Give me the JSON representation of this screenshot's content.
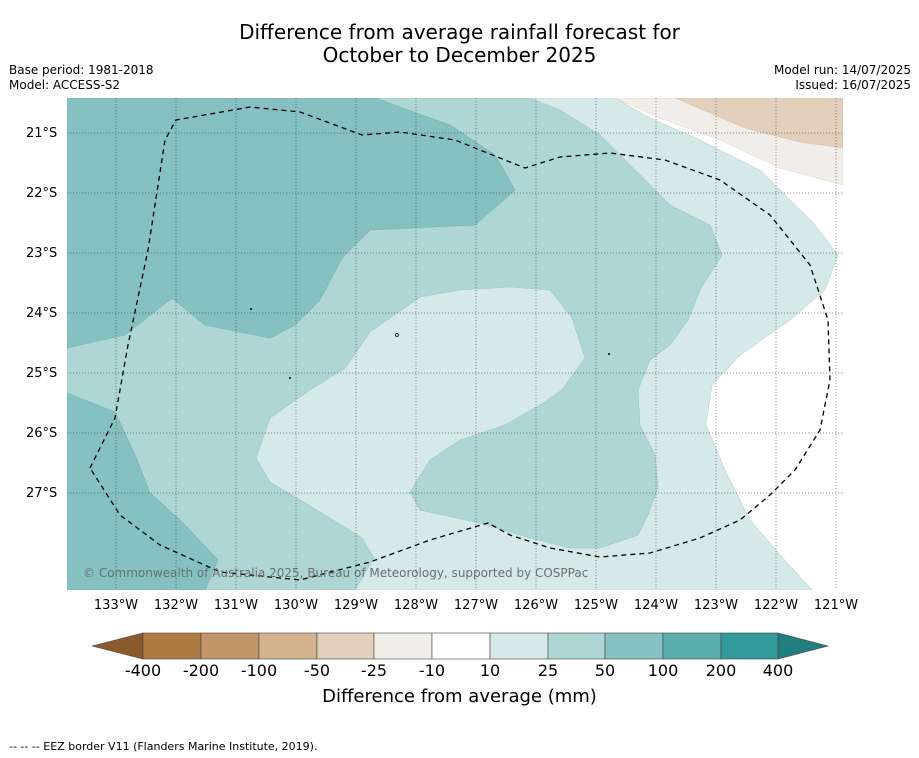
{
  "header": {
    "title_line1": "Difference from average rainfall forecast for",
    "title_line2": "October to December 2025"
  },
  "meta": {
    "base_period": "Base period: 1981-2018",
    "model": "Model: ACCESS-S2",
    "model_run": "Model run: 14/07/2025",
    "issued": "Issued: 16/07/2025"
  },
  "map": {
    "lat_labels": [
      "21°S",
      "22°S",
      "23°S",
      "24°S",
      "25°S",
      "26°S",
      "27°S"
    ],
    "lon_labels": [
      "133°W",
      "132°W",
      "131°W",
      "130°W",
      "129°W",
      "128°W",
      "127°W",
      "126°W",
      "125°W",
      "124°W",
      "123°W",
      "122°W",
      "121°W"
    ],
    "credit": "© Commonwealth of Australia 2025, Bureau of Meteorology, supported by COSPPac",
    "colors": {
      "c_10_25": "#d5e9e8",
      "c_25_50": "#aed6d5",
      "c_50_100": "#85c1c0",
      "c_n25_n50": "#e2cfbc",
      "c_n10_n25": "#f1ede8",
      "border": "#000000"
    }
  },
  "colorbar": {
    "tick_labels": [
      "-400",
      "-200",
      "-100",
      "-50",
      "-25",
      "-10",
      "10",
      "25",
      "50",
      "100",
      "200",
      "400"
    ],
    "colors": [
      "#8b5a2b",
      "#ad7b44",
      "#c2956a",
      "#d4b391",
      "#e2cfbc",
      "#f1ede8",
      "#ffffff",
      "#d5e9e8",
      "#aed6d5",
      "#85c1c0",
      "#5aaeae",
      "#33999a",
      "#207e7f"
    ],
    "title": "Difference from average (mm)"
  },
  "footer": {
    "legend_text": "--  --  -- EEZ border V11 (Flanders Marine Institute, 2019)."
  }
}
